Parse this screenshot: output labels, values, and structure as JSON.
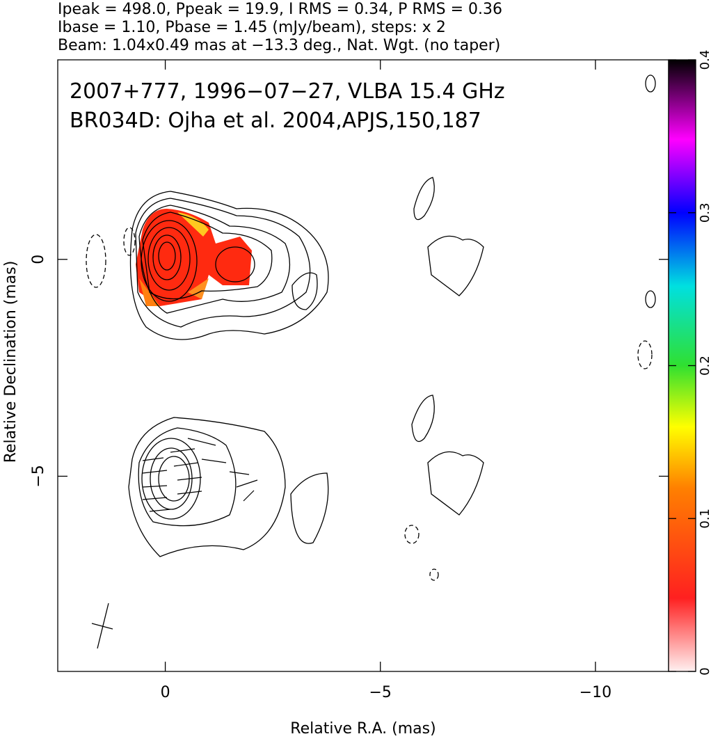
{
  "chart_data": {
    "type": "image",
    "header": [
      "Ipeak = 498.0, Ppeak = 19.9, I RMS = 0.34, P RMS = 0.36",
      "Ibase = 1.10, Pbase = 1.45 (mJy/beam), steps: x 2",
      "Beam: 1.04x0.49 mas at −13.3 deg., Nat. Wgt. (no taper)"
    ],
    "annotations": [
      "2007+777, 1996−07−27, VLBA 15.4 GHz",
      "BR034D: Ojha et al. 2004,APJS,150,187"
    ],
    "x_label": "Relative R.A. (mas)",
    "y_label": "Relative Declination (mas)",
    "xlim": [
      2.5,
      -11.7
    ],
    "ylim": [
      -9.5,
      4.6
    ],
    "xticks": [
      0,
      {
        "value": -5,
        "label": "−5"
      },
      {
        "value": -10,
        "label": "−10"
      }
    ],
    "yticks": [
      0,
      {
        "value": -5,
        "label": "−5"
      }
    ],
    "colorbar": {
      "lim": [
        0,
        0.4
      ],
      "ticks": [
        0,
        0.1,
        0.2,
        0.3,
        0.4
      ]
    }
  }
}
